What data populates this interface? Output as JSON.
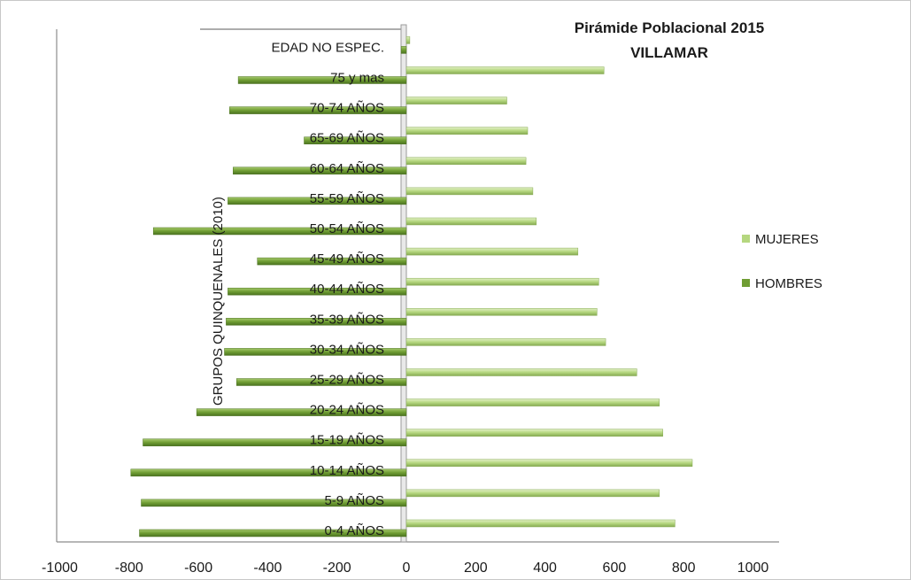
{
  "chart_data": {
    "type": "bar",
    "orientation": "horizontal",
    "title_lines": [
      "Pirámide Poblacional  2015",
      "VILLAMAR"
    ],
    "ylabel": "GRUPOS QUINQUENALES (2010)",
    "categories": [
      "0-4 AÑOS",
      "5-9 AÑOS",
      "10-14 AÑOS",
      "15-19 AÑOS",
      "20-24 AÑOS",
      "25-29 AÑOS",
      "30-34 AÑOS",
      "35-39 AÑOS",
      "40-44 AÑOS",
      "45-49 AÑOS",
      "50-54 AÑOS",
      "55-59 AÑOS",
      "60-64 AÑOS",
      "65-69 AÑOS",
      "70-74 AÑOS",
      "75 y mas",
      "EDAD NO ESPEC."
    ],
    "series": [
      {
        "name": "MUJERES",
        "color": "#b5d77f",
        "values": [
          775,
          730,
          825,
          740,
          730,
          665,
          575,
          550,
          555,
          495,
          375,
          365,
          345,
          350,
          290,
          570,
          10
        ]
      },
      {
        "name": "HOMBRES",
        "color": "#6f9d33",
        "values": [
          -770,
          -765,
          -795,
          -760,
          -605,
          -490,
          -525,
          -520,
          -515,
          -430,
          -730,
          -515,
          -500,
          -295,
          -510,
          -485,
          -15
        ]
      }
    ],
    "xlim": [
      -1000,
      1000
    ],
    "xticks": [
      -1000,
      -800,
      -600,
      -400,
      -200,
      0,
      200,
      400,
      600,
      800,
      1000
    ],
    "grid": false,
    "legend_position": "right"
  }
}
